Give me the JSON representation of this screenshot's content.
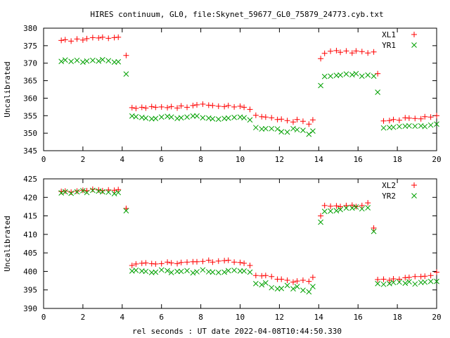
{
  "title": "HIRES continuum, GL0, file:Skynet_59677_GL0_75879_24773.cyb.txt",
  "xlabel": "rel seconds : UT date 2022-04-08T10:44:50.330",
  "colors": {
    "red": "#ff0000",
    "green": "#00a000"
  },
  "chart_data": [
    {
      "type": "scatter",
      "ylabel": "Uncalibrated",
      "xlim": [
        0,
        20
      ],
      "ylim": [
        345,
        380
      ],
      "xticks": [
        0,
        2,
        4,
        6,
        8,
        10,
        12,
        14,
        16,
        18,
        20
      ],
      "yticks": [
        345,
        350,
        355,
        360,
        365,
        370,
        375,
        380
      ],
      "grid": false,
      "legend_position": "top-right",
      "x": [
        0.9,
        1.1,
        1.4,
        1.7,
        2.0,
        2.2,
        2.5,
        2.8,
        3.0,
        3.3,
        3.6,
        3.8,
        4.2,
        4.5,
        4.7,
        5.0,
        5.2,
        5.5,
        5.7,
        6.0,
        6.3,
        6.5,
        6.8,
        7.0,
        7.3,
        7.6,
        7.8,
        8.1,
        8.4,
        8.6,
        8.9,
        9.2,
        9.4,
        9.7,
        10.0,
        10.2,
        10.5,
        10.8,
        11.1,
        11.3,
        11.6,
        11.9,
        12.1,
        12.4,
        12.7,
        12.9,
        13.2,
        13.5,
        13.7,
        14.1,
        14.3,
        14.6,
        14.9,
        15.1,
        15.4,
        15.7,
        15.9,
        16.2,
        16.5,
        16.8,
        17.0,
        17.3,
        17.6,
        17.8,
        18.1,
        18.4,
        18.6,
        18.9,
        19.2,
        19.4,
        19.7,
        20.0
      ],
      "series": [
        {
          "name": "XL1",
          "marker": "+",
          "color": "#ff0000",
          "values": [
            376.5,
            376.7,
            376.3,
            376.9,
            376.6,
            377.0,
            377.3,
            377.2,
            377.4,
            377.1,
            377.3,
            377.4,
            372.2,
            357.3,
            357.1,
            357.4,
            357.2,
            357.6,
            357.4,
            357.5,
            357.3,
            357.6,
            357.2,
            357.8,
            357.4,
            357.9,
            358.1,
            358.3,
            358.0,
            357.9,
            357.7,
            357.6,
            357.9,
            357.5,
            357.7,
            357.4,
            356.8,
            355.1,
            354.7,
            354.6,
            354.4,
            353.9,
            354.0,
            353.6,
            353.2,
            353.9,
            353.4,
            352.6,
            353.8,
            371.3,
            372.8,
            373.4,
            373.6,
            373.1,
            373.5,
            372.9,
            373.5,
            373.3,
            372.9,
            373.2,
            367.0,
            353.5,
            353.6,
            353.9,
            353.7,
            354.4,
            354.3,
            354.2,
            354.1,
            354.7,
            354.6,
            355.0
          ]
        },
        {
          "name": "YR1",
          "marker": "x",
          "color": "#00a000",
          "values": [
            370.5,
            370.9,
            370.5,
            370.8,
            370.3,
            370.6,
            370.8,
            370.6,
            371.0,
            370.7,
            370.3,
            370.4,
            366.9,
            354.9,
            354.7,
            354.5,
            354.3,
            354.1,
            354.2,
            354.6,
            354.8,
            354.6,
            354.2,
            354.4,
            354.6,
            354.9,
            354.9,
            354.4,
            354.3,
            354.1,
            354.0,
            354.2,
            354.3,
            354.5,
            354.6,
            354.4,
            353.8,
            351.6,
            351.2,
            351.3,
            351.3,
            351.2,
            350.4,
            350.3,
            351.3,
            351.0,
            350.8,
            349.7,
            350.6,
            363.6,
            366.2,
            366.3,
            366.5,
            366.6,
            366.9,
            366.7,
            367.0,
            366.3,
            366.6,
            366.3,
            361.7,
            351.5,
            351.6,
            351.7,
            351.9,
            352.0,
            352.1,
            352.0,
            352.1,
            351.9,
            352.3,
            352.6
          ]
        }
      ]
    },
    {
      "type": "scatter",
      "ylabel": "Uncalibrated",
      "xlim": [
        0,
        20
      ],
      "ylim": [
        390,
        425
      ],
      "xticks": [
        0,
        2,
        4,
        6,
        8,
        10,
        12,
        14,
        16,
        18,
        20
      ],
      "yticks": [
        390,
        395,
        400,
        405,
        410,
        415,
        420,
        425
      ],
      "grid": false,
      "legend_position": "top-right",
      "x": [
        0.9,
        1.1,
        1.4,
        1.7,
        2.0,
        2.2,
        2.5,
        2.8,
        3.0,
        3.3,
        3.6,
        3.8,
        4.2,
        4.5,
        4.7,
        5.0,
        5.2,
        5.5,
        5.7,
        6.0,
        6.3,
        6.5,
        6.8,
        7.0,
        7.3,
        7.6,
        7.8,
        8.1,
        8.4,
        8.6,
        8.9,
        9.2,
        9.4,
        9.7,
        10.0,
        10.2,
        10.5,
        10.8,
        11.1,
        11.3,
        11.6,
        11.9,
        12.1,
        12.4,
        12.7,
        12.9,
        13.2,
        13.5,
        13.7,
        14.1,
        14.3,
        14.6,
        14.9,
        15.1,
        15.4,
        15.7,
        15.9,
        16.2,
        16.5,
        16.8,
        17.0,
        17.3,
        17.6,
        17.8,
        18.1,
        18.4,
        18.6,
        18.9,
        19.2,
        19.4,
        19.7,
        20.0
      ],
      "series": [
        {
          "name": "XL2",
          "marker": "+",
          "color": "#ff0000",
          "values": [
            421.6,
            421.7,
            421.4,
            421.7,
            421.9,
            421.8,
            422.2,
            422.0,
            421.8,
            422.0,
            421.9,
            422.1,
            417.0,
            401.6,
            402.0,
            402.2,
            402.3,
            402.1,
            402.0,
            402.1,
            402.5,
            402.3,
            402.1,
            402.4,
            402.5,
            402.6,
            402.6,
            402.7,
            403.0,
            402.5,
            402.8,
            402.9,
            403.0,
            402.5,
            402.4,
            402.2,
            401.6,
            398.9,
            398.8,
            398.9,
            398.6,
            397.9,
            397.9,
            397.6,
            397.1,
            397.4,
            397.6,
            397.3,
            398.4,
            415.0,
            417.8,
            417.6,
            417.7,
            417.5,
            417.8,
            417.9,
            417.5,
            417.8,
            418.5,
            411.7,
            397.8,
            397.9,
            397.6,
            398.0,
            397.9,
            398.3,
            398.4,
            398.6,
            398.6,
            398.7,
            398.9,
            399.8
          ]
        },
        {
          "name": "YR2",
          "marker": "x",
          "color": "#00a000",
          "values": [
            421.2,
            421.5,
            421.1,
            421.5,
            421.8,
            421.3,
            421.9,
            421.7,
            421.5,
            421.4,
            421.0,
            421.3,
            416.4,
            400.1,
            400.3,
            400.1,
            400.0,
            399.7,
            399.8,
            400.4,
            400.2,
            399.7,
            400.0,
            400.0,
            400.2,
            399.6,
            399.9,
            400.4,
            399.9,
            399.8,
            399.7,
            399.8,
            400.2,
            400.3,
            400.1,
            400.1,
            399.8,
            396.7,
            396.4,
            396.9,
            395.6,
            395.3,
            395.4,
            396.2,
            395.3,
            395.9,
            394.9,
            394.5,
            395.9,
            413.3,
            416.2,
            416.3,
            416.4,
            416.7,
            417.1,
            417.1,
            417.4,
            416.9,
            417.2,
            410.8,
            396.7,
            396.5,
            396.7,
            397.0,
            397.1,
            396.8,
            397.2,
            396.6,
            397.0,
            397.1,
            397.3,
            397.3
          ]
        }
      ]
    }
  ]
}
